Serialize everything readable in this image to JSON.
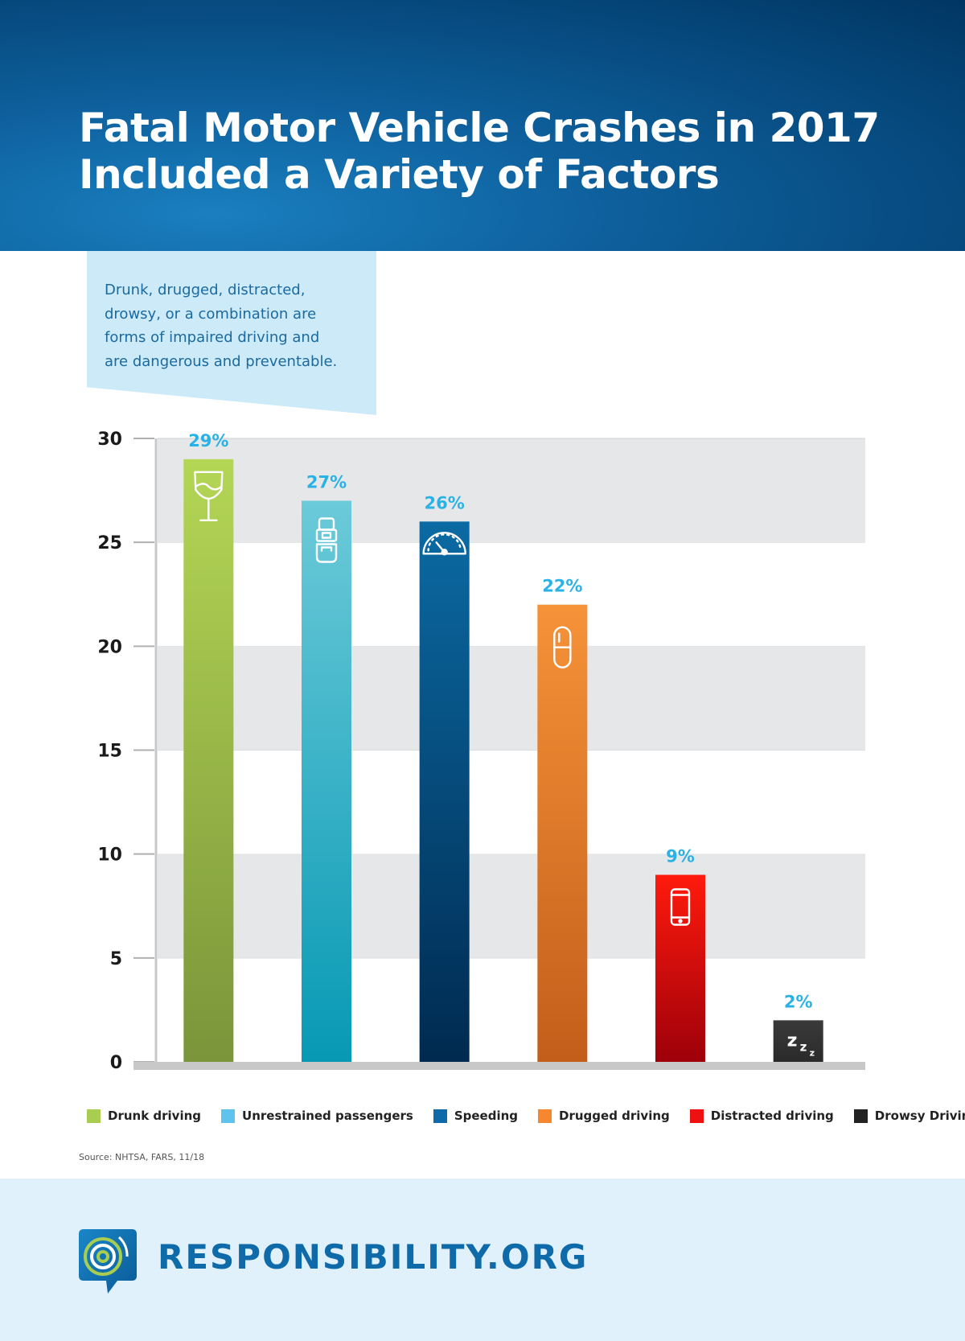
{
  "header": {
    "title_line1": "Fatal Motor Vehicle Crashes in 2017",
    "title_line2": "Included a Variety of Factors"
  },
  "callout": {
    "text": "Drunk, drugged, distracted, drowsy, or a combination are forms of impaired driving and are dangerous and preventable."
  },
  "chart_data": {
    "type": "bar",
    "title": "Fatal Motor Vehicle Crashes in 2017 Included a Variety of Factors",
    "categories": [
      "Drunk driving",
      "Unrestrained passengers",
      "Speeding",
      "Drugged driving",
      "Distracted driving",
      "Drowsy Driving"
    ],
    "values": [
      29,
      27,
      26,
      22,
      9,
      2
    ],
    "data_labels": [
      "29%",
      "27%",
      "26%",
      "22%",
      "9%",
      "2%"
    ],
    "icons": [
      "wine-glass-icon",
      "seatbelt-icon",
      "speedometer-icon",
      "pill-icon",
      "phone-icon",
      "zzz-icon"
    ],
    "colors": [
      {
        "top": "#b4d655",
        "bottom": "#7a953a"
      },
      {
        "top": "#6ccad9",
        "bottom": "#0799b4"
      },
      {
        "top": "#0b6aa3",
        "bottom": "#002a50"
      },
      {
        "top": "#f69238",
        "bottom": "#c25e1a"
      },
      {
        "top": "#ff1a0d",
        "bottom": "#9e000a"
      },
      {
        "top": "#3a3a3a",
        "bottom": "#2a2a2a"
      }
    ],
    "legend_colors": [
      "#a8cd50",
      "#5ec4ee",
      "#0e6aa8",
      "#f6872e",
      "#ee1111",
      "#222222"
    ],
    "ylim": [
      0,
      30
    ],
    "yticks": [
      0,
      5,
      10,
      15,
      20,
      25,
      30
    ],
    "grid": "alternating bands",
    "legend_position": "bottom",
    "xlabel": "",
    "ylabel": ""
  },
  "source": "Source: NHTSA, FARS, 11/18",
  "footer": {
    "logo_text": "RESPONSIBILITY.ORG",
    "brand_color": "#0e6aa8"
  }
}
